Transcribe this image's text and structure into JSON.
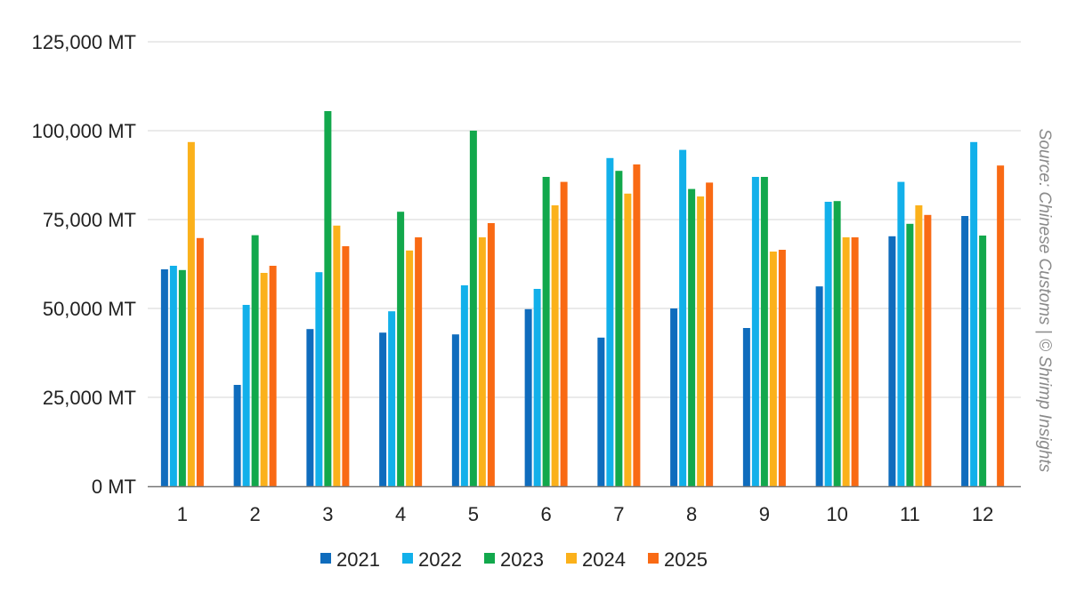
{
  "chart_data": {
    "type": "bar",
    "categories": [
      "1",
      "2",
      "3",
      "4",
      "5",
      "6",
      "7",
      "8",
      "9",
      "10",
      "11",
      "12"
    ],
    "series": [
      {
        "name": "2021",
        "color": "#0f6cbd",
        "values": [
          61000,
          28500,
          44200,
          43200,
          42700,
          49800,
          41800,
          50000,
          44500,
          56200,
          70300,
          76000
        ]
      },
      {
        "name": "2022",
        "color": "#12b0ea",
        "values": [
          62000,
          51000,
          60200,
          49200,
          56500,
          55500,
          92300,
          94600,
          87000,
          80000,
          85600,
          96800
        ]
      },
      {
        "name": "2023",
        "color": "#12a84c",
        "values": [
          60800,
          70600,
          105500,
          77200,
          100000,
          87000,
          88700,
          83600,
          87000,
          80200,
          73800,
          70500
        ]
      },
      {
        "name": "2024",
        "color": "#fbb11b",
        "values": [
          96800,
          60000,
          73300,
          66300,
          70000,
          79000,
          82300,
          81500,
          66000,
          70000,
          79000,
          null
        ]
      },
      {
        "name": "2025",
        "color": "#f96a14",
        "values": [
          69800,
          62000,
          67500,
          70000,
          74000,
          85600,
          90500,
          85400,
          66500,
          70000,
          76300,
          90200
        ]
      }
    ],
    "yticks": [
      "125,000 MT",
      "100,000 MT",
      "75,000 MT",
      "50,000 MT",
      "25,000 MT",
      "0 MT"
    ],
    "ytick_values": [
      125000,
      100000,
      75000,
      50000,
      25000,
      0
    ],
    "ylim": [
      0,
      125000
    ],
    "grid": true,
    "legend_position": "bottom",
    "source_note": "Source: Chinese Customs | © Shrimp Insights"
  }
}
